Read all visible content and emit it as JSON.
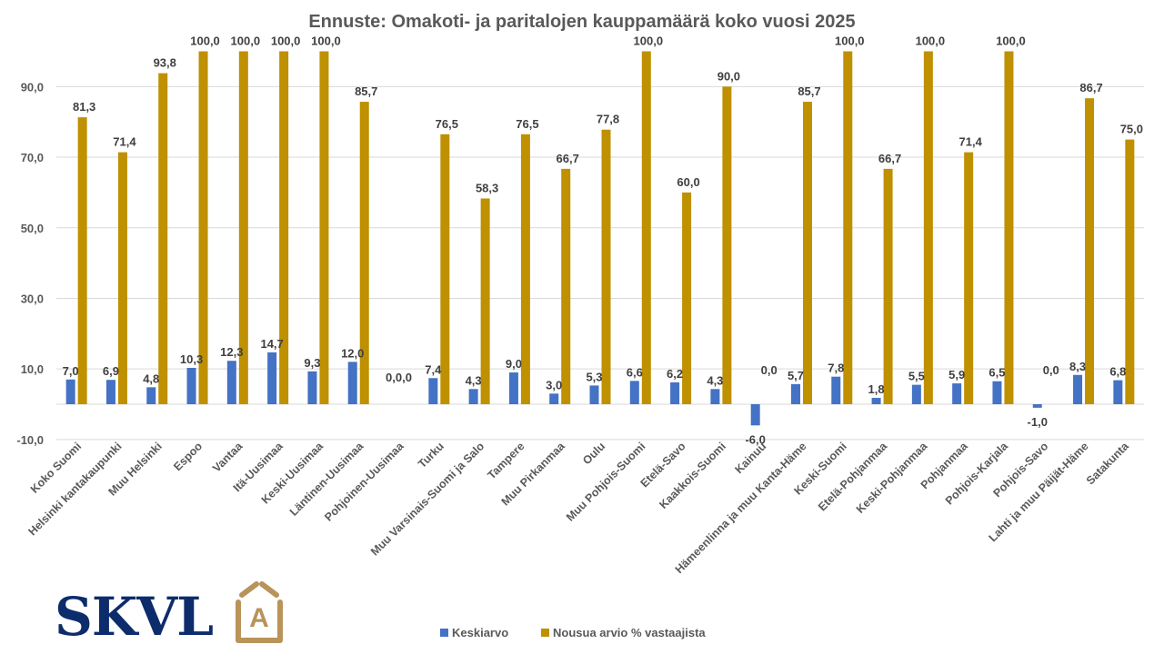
{
  "chart_data": {
    "type": "bar",
    "title": "Ennuste: Omakoti- ja paritalojen kauppamäärä koko vuosi 2025",
    "xlabel": "",
    "ylabel": "",
    "ylim": [
      -10,
      100
    ],
    "yticks": [
      -10,
      10,
      30,
      50,
      70,
      90
    ],
    "ytick_labels": [
      "-10,0",
      "10,0",
      "30,0",
      "50,0",
      "70,0",
      "90,0"
    ],
    "grid": true,
    "legend_position": "bottom",
    "categories": [
      "Koko Suomi",
      "Helsinki kantakaupunki",
      "Muu Helsinki",
      "Espoo",
      "Vantaa",
      "Itä-Uusimaa",
      "Keski-Uusimaa",
      "Läntinen-Uusimaa",
      "Pohjoinen-Uusimaa",
      "Turku",
      "Muu Varsinais-Suomi ja Salo",
      "Tampere",
      "Muu Pirkanmaa",
      "Oulu",
      "Muu Pohjois-Suomi",
      "Etelä-Savo",
      "Kaakkois-Suomi",
      "Kainuu",
      "Hämeenlinna ja muu Kanta-Häme",
      "Keski-Suomi",
      "Etelä-Pohjanmaa",
      "Keski-Pohjanmaa",
      "Pohjanmaa",
      "Pohjois-Karjala",
      "Pohjois-Savo",
      "Lahti ja muu Päijät-Häme",
      "Satakunta"
    ],
    "series": [
      {
        "name": "Keskiarvo",
        "color": "#4472c4",
        "values": [
          7.0,
          6.9,
          4.8,
          10.3,
          12.3,
          14.7,
          9.3,
          12.0,
          0.0,
          7.4,
          4.3,
          9.0,
          3.0,
          5.3,
          6.6,
          6.2,
          4.3,
          -6.0,
          5.7,
          7.8,
          1.8,
          5.5,
          5.9,
          6.5,
          -1.0,
          8.3,
          6.8
        ],
        "labels": [
          "7,0",
          "6,9",
          "4,8",
          "10,3",
          "12,3",
          "14,7",
          "9,3",
          "12,0",
          "0,0",
          "7,4",
          "4,3",
          "9,0",
          "3,0",
          "5,3",
          "6,6",
          "6,2",
          "4,3",
          "-6,0",
          "5,7",
          "7,8",
          "1,8",
          "5,5",
          "5,9",
          "6,5",
          "-1,0",
          "8,3",
          "6,8"
        ]
      },
      {
        "name": "Nousua arvio % vastaajista",
        "color": "#bf9000",
        "values": [
          81.3,
          71.4,
          93.8,
          100.0,
          100.0,
          100.0,
          100.0,
          85.7,
          0.0,
          76.5,
          58.3,
          76.5,
          66.7,
          77.8,
          100.0,
          60.0,
          90.0,
          0.0,
          85.7,
          100.0,
          66.7,
          100.0,
          71.4,
          100.0,
          0.0,
          86.7,
          75.0
        ],
        "labels": [
          "81,3",
          "71,4",
          "93,8",
          "100,0",
          "100,0",
          "100,0",
          "100,0",
          "85,7",
          "0,0",
          "76,5",
          "58,3",
          "76,5",
          "66,7",
          "77,8",
          "100,0",
          "60,0",
          "90,0",
          "0,0",
          "85,7",
          "100,0",
          "66,7",
          "100,0",
          "71,4",
          "100,0",
          "0,0",
          "86,7",
          "75,0"
        ]
      }
    ]
  },
  "logo": {
    "text": "SKVL",
    "badge_letter": "A",
    "text_color": "#0d2c6c",
    "badge_color": "#b9935a"
  }
}
